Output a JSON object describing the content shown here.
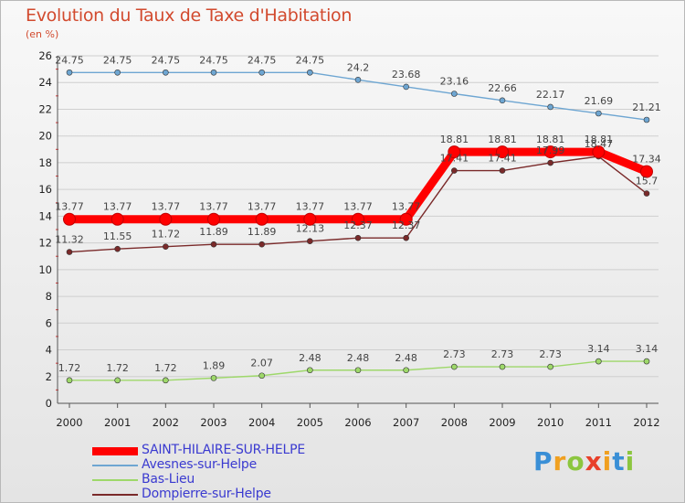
{
  "header": {
    "title": "Evolution du Taux de Taxe d'Habitation",
    "unit": "(en %)"
  },
  "chart_data": {
    "type": "line",
    "title": "Evolution du Taux de Taxe d'Habitation",
    "ylabel": "(en %)",
    "xlabel": "",
    "ylim": [
      0,
      26
    ],
    "yticks": [
      0,
      2,
      4,
      6,
      8,
      10,
      12,
      14,
      16,
      18,
      20,
      22,
      24,
      26
    ],
    "x": [
      "2000",
      "2001",
      "2002",
      "2003",
      "2004",
      "2005",
      "2006",
      "2007",
      "2008",
      "2009",
      "2010",
      "2011",
      "2012"
    ],
    "grid": "horizontal",
    "legend_position": "bottom-left",
    "series": [
      {
        "name": "SAINT-HILAIRE-SUR-HELPE",
        "color": "#ff0000",
        "values": [
          13.77,
          13.77,
          13.77,
          13.77,
          13.77,
          13.77,
          13.77,
          13.77,
          18.81,
          18.81,
          18.81,
          18.81,
          17.34
        ],
        "labels": [
          "13.77",
          "13.77",
          "13.77",
          "13.77",
          "13.77",
          "13.77",
          "13.77",
          "13.77",
          "18.81",
          "18.81",
          "18.81",
          "18.81",
          "17.34"
        ]
      },
      {
        "name": "Avesnes-sur-Helpe",
        "color": "#6ea6d2",
        "values": [
          24.75,
          24.75,
          24.75,
          24.75,
          24.75,
          24.75,
          24.2,
          23.68,
          23.16,
          22.66,
          22.17,
          21.69,
          21.21
        ],
        "labels": [
          "24.75",
          "24.75",
          "24.75",
          "24.75",
          "24.75",
          "24.75",
          "24.2",
          "23.68",
          "23.16",
          "22.66",
          "22.17",
          "21.69",
          "21.21"
        ]
      },
      {
        "name": "Bas-Lieu",
        "color": "#9ed86a",
        "values": [
          1.72,
          1.72,
          1.72,
          1.89,
          2.07,
          2.48,
          2.48,
          2.48,
          2.73,
          2.73,
          2.73,
          3.14,
          3.14
        ],
        "labels": [
          "1.72",
          "1.72",
          "1.72",
          "1.89",
          "2.07",
          "2.48",
          "2.48",
          "2.48",
          "2.73",
          "2.73",
          "2.73",
          "3.14",
          "3.14"
        ]
      },
      {
        "name": "Dompierre-sur-Helpe",
        "color": "#7a2a2a",
        "values": [
          11.32,
          11.55,
          11.72,
          11.89,
          11.89,
          12.13,
          12.37,
          12.37,
          17.41,
          17.41,
          17.99,
          18.47,
          15.7
        ],
        "labels": [
          "11.32",
          "11.55",
          "11.72",
          "11.89",
          "11.89",
          "12.13",
          "12.37",
          "12.37",
          "17.41",
          "17.41",
          "17.99",
          "18.47",
          "15.7"
        ]
      }
    ]
  },
  "logo": {
    "letters": [
      "P",
      "r",
      "o",
      "x",
      "i",
      "t",
      "i"
    ],
    "colors": [
      "#3a8fd6",
      "#f0a020",
      "#8cc63f",
      "#e8402a",
      "#f0a020",
      "#3a8fd6",
      "#8cc63f"
    ]
  }
}
